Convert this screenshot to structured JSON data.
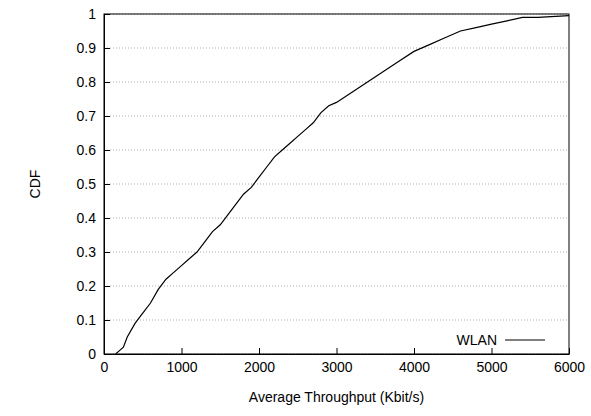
{
  "chart_data": {
    "type": "line",
    "x_label": "Average Throughput (Kbit/s)",
    "y_label": "CDF",
    "x": [
      150,
      200,
      250,
      300,
      400,
      500,
      600,
      700,
      800,
      900,
      1000,
      1100,
      1200,
      1300,
      1400,
      1500,
      1600,
      1700,
      1800,
      1900,
      2000,
      2100,
      2200,
      2300,
      2400,
      2500,
      2600,
      2700,
      2800,
      2900,
      3000,
      3200,
      3400,
      3600,
      3800,
      4000,
      4200,
      4400,
      4600,
      4800,
      5000,
      5200,
      5400,
      5600,
      6000
    ],
    "series": [
      {
        "name": "WLAN",
        "color": "#000000",
        "line_style": "solid",
        "values": [
          0,
          0.01,
          0.02,
          0.05,
          0.09,
          0.12,
          0.15,
          0.19,
          0.22,
          0.24,
          0.26,
          0.28,
          0.3,
          0.33,
          0.36,
          0.38,
          0.41,
          0.44,
          0.47,
          0.49,
          0.52,
          0.55,
          0.58,
          0.6,
          0.62,
          0.64,
          0.66,
          0.68,
          0.71,
          0.73,
          0.74,
          0.77,
          0.8,
          0.83,
          0.86,
          0.89,
          0.91,
          0.93,
          0.95,
          0.96,
          0.97,
          0.98,
          0.99,
          0.99,
          0.995
        ]
      }
    ],
    "xlim": [
      0,
      6000
    ],
    "xticks": [
      0,
      1000,
      2000,
      3000,
      4000,
      5000,
      6000
    ],
    "ylim": [
      0,
      1
    ],
    "yticks": [
      0,
      0.1,
      0.2,
      0.3,
      0.4,
      0.5,
      0.6,
      0.7,
      0.8,
      0.9,
      1
    ],
    "grid": true,
    "legend": "bottom-right"
  }
}
